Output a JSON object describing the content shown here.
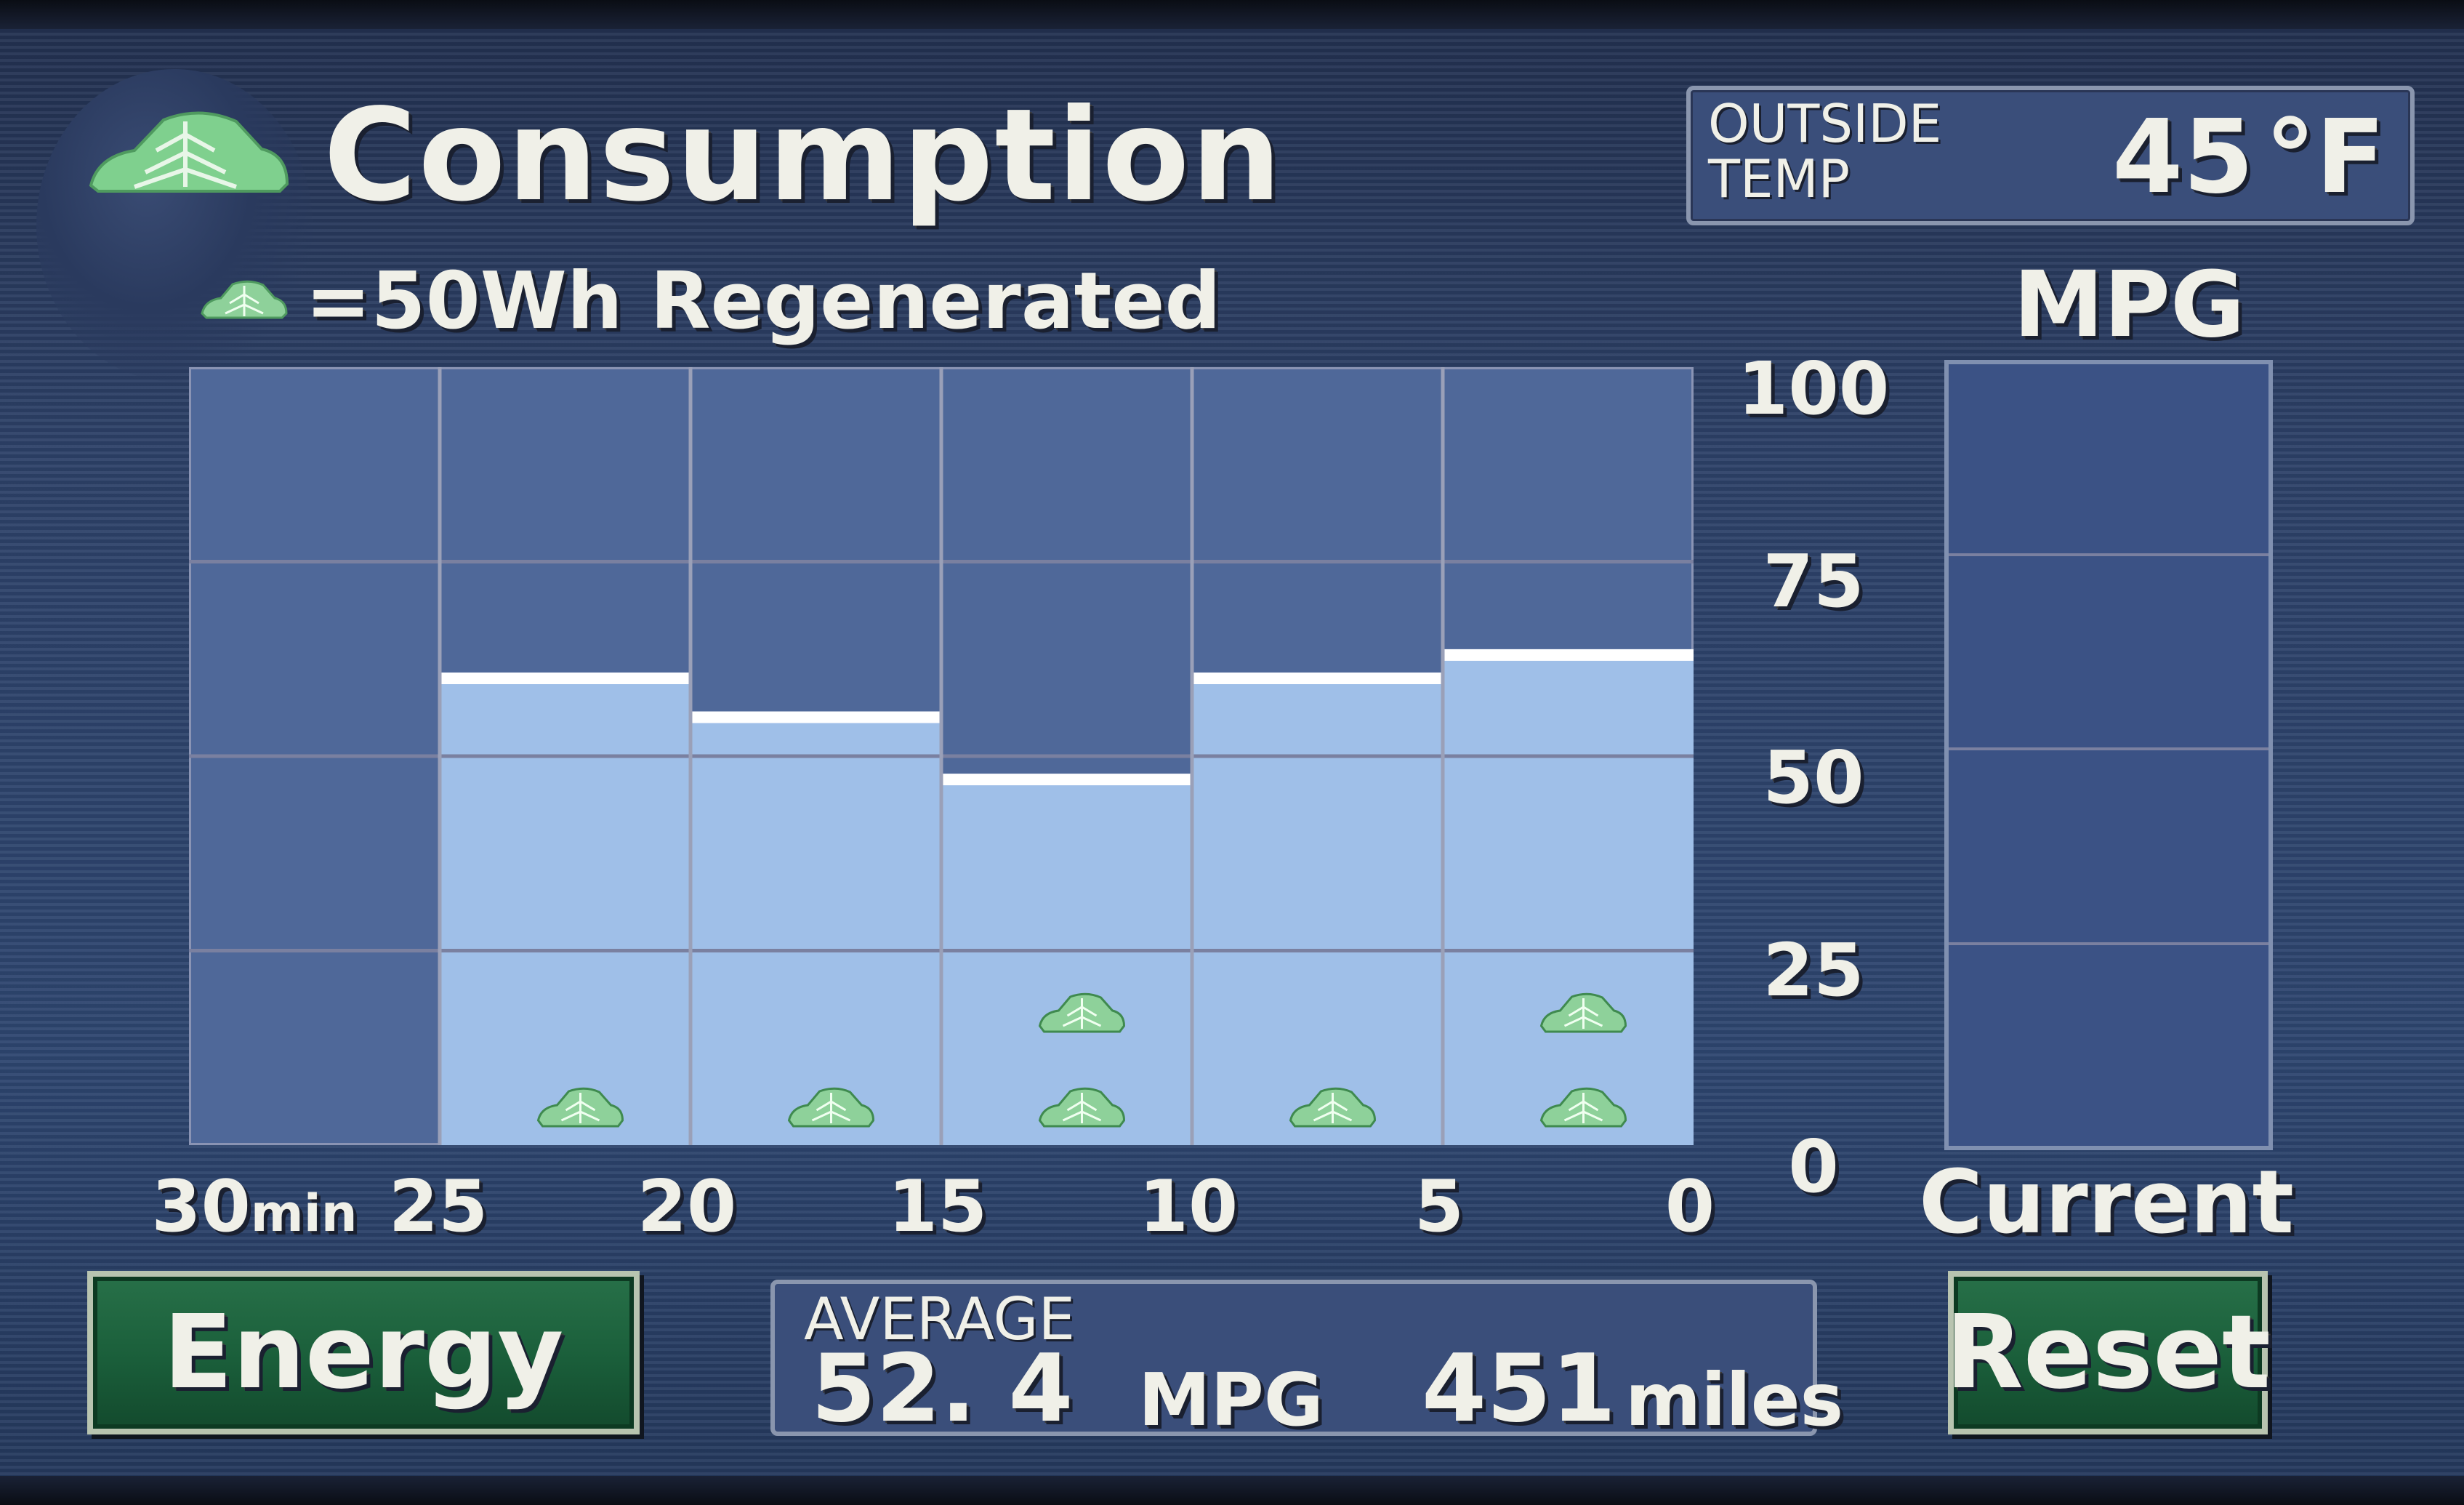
{
  "header": {
    "title": "Consumption",
    "legend_text": "=50Wh Regenerated",
    "legend_icon": "leaf-car-icon"
  },
  "outside_temp": {
    "label": "OUTSIDE\nTEMP",
    "value": "45",
    "unit": "°F"
  },
  "mpg_panel": {
    "header": "MPG",
    "current_label": "Current",
    "y_ticks": [
      "100",
      "75",
      "50",
      "25",
      "0"
    ]
  },
  "x_axis": {
    "first_tick": "30",
    "first_tick_unit": "min",
    "ticks": [
      "25",
      "20",
      "15",
      "10",
      "5",
      "0"
    ]
  },
  "average": {
    "label": "AVERAGE",
    "mpg_value": "52. 4",
    "mpg_unit": "MPG",
    "distance_value": "451",
    "distance_unit": "miles"
  },
  "buttons": {
    "energy": "Energy",
    "reset": "Reset"
  },
  "colors": {
    "empty_bar": "#4f6899",
    "filled_bar": "#9fbfe8",
    "bar_cap": "#ffffff",
    "leaf_green": "#8ed19a",
    "button_green": "#1a5e3a"
  },
  "chart_data": {
    "type": "bar",
    "title": "",
    "xlabel": "min",
    "ylabel": "MPG",
    "ylim": [
      0,
      100
    ],
    "categories": [
      "30-25",
      "25-20",
      "20-15",
      "15-10",
      "10-5",
      "5-0"
    ],
    "values": [
      0,
      60,
      55,
      47,
      60,
      63
    ],
    "regenerated_icons": [
      0,
      1,
      1,
      2,
      1,
      2
    ],
    "current_mpg": 0
  }
}
